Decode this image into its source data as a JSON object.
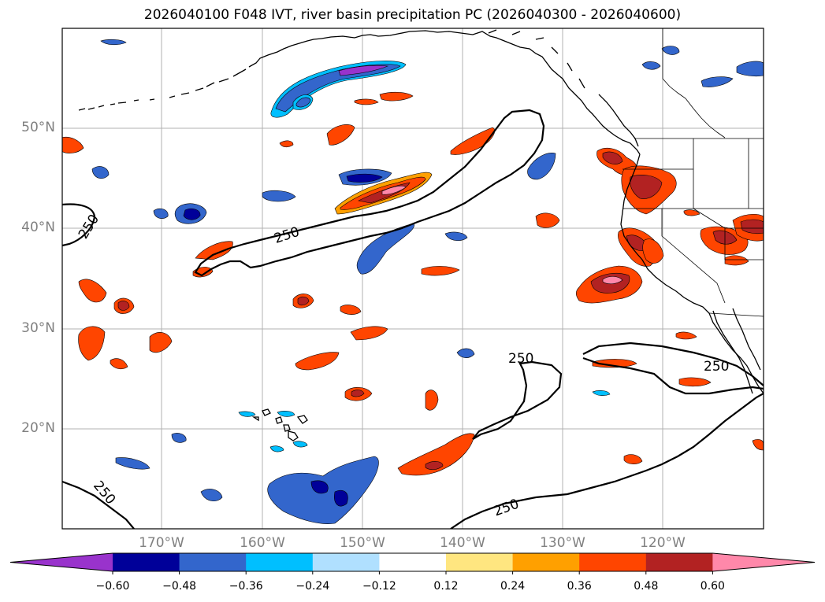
{
  "title": "2026040100 F048 IVT, river basin precipitation PC (2026040300 - 2026040600)",
  "lat_labels": [
    "50°N",
    "40°N",
    "30°N",
    "20°N"
  ],
  "lon_labels": [
    "170°W",
    "160°W",
    "150°W",
    "140°W",
    "130°W",
    "120°W"
  ],
  "contour_labels": [
    "250",
    "250",
    "250",
    "250",
    "250",
    "250"
  ],
  "colorbar": {
    "ticks": [
      "−0.60",
      "−0.48",
      "−0.36",
      "−0.24",
      "−0.12",
      "0.12",
      "0.24",
      "0.36",
      "0.48",
      "0.60"
    ],
    "colors": [
      "#9933cc",
      "#000099",
      "#3366cc",
      "#00bfff",
      "#b0e0ff",
      "#ffffff",
      "#ffe680",
      "#ffa000",
      "#ff4500",
      "#b22222",
      "#ff88aa"
    ]
  },
  "colors": {
    "ivt_contour": "#000000",
    "gridline": "#b0b0b0",
    "coastline": "#000000"
  }
}
